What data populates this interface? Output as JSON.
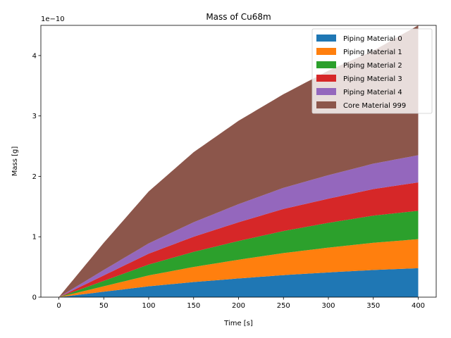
{
  "chart_data": {
    "type": "area",
    "stacked": true,
    "title": "Mass of Cu68m",
    "xlabel": "Time [s]",
    "ylabel": "Mass [g]",
    "y_offset_text": "1e−10",
    "xlim": [
      -20,
      420
    ],
    "ylim": [
      0,
      4.5
    ],
    "xticks": [
      0,
      50,
      100,
      150,
      200,
      250,
      300,
      350,
      400
    ],
    "yticks": [
      0,
      1,
      2,
      3,
      4
    ],
    "grid": false,
    "legend_position": "top-right",
    "x": [
      0,
      50,
      100,
      150,
      200,
      250,
      300,
      350,
      400
    ],
    "series": [
      {
        "name": "Piping Material 0",
        "color": "#1f77b4",
        "values": [
          0,
          0.09,
          0.18,
          0.25,
          0.31,
          0.365,
          0.41,
          0.45,
          0.48
        ]
      },
      {
        "name": "Piping Material 1",
        "color": "#ff7f0e",
        "values": [
          0,
          0.09,
          0.18,
          0.25,
          0.31,
          0.365,
          0.41,
          0.45,
          0.48
        ]
      },
      {
        "name": "Piping Material 2",
        "color": "#2ca02c",
        "values": [
          0,
          0.09,
          0.18,
          0.25,
          0.31,
          0.365,
          0.41,
          0.45,
          0.47
        ]
      },
      {
        "name": "Piping Material 3",
        "color": "#d62728",
        "values": [
          0,
          0.09,
          0.18,
          0.25,
          0.31,
          0.365,
          0.4,
          0.44,
          0.47
        ]
      },
      {
        "name": "Piping Material 4",
        "color": "#9467bd",
        "values": [
          0,
          0.09,
          0.17,
          0.24,
          0.3,
          0.35,
          0.39,
          0.42,
          0.45
        ]
      },
      {
        "name": "Core Material 999",
        "color": "#8c564b",
        "values": [
          0,
          0.45,
          0.86,
          1.16,
          1.38,
          1.55,
          1.73,
          1.87,
          2.15
        ]
      }
    ]
  }
}
